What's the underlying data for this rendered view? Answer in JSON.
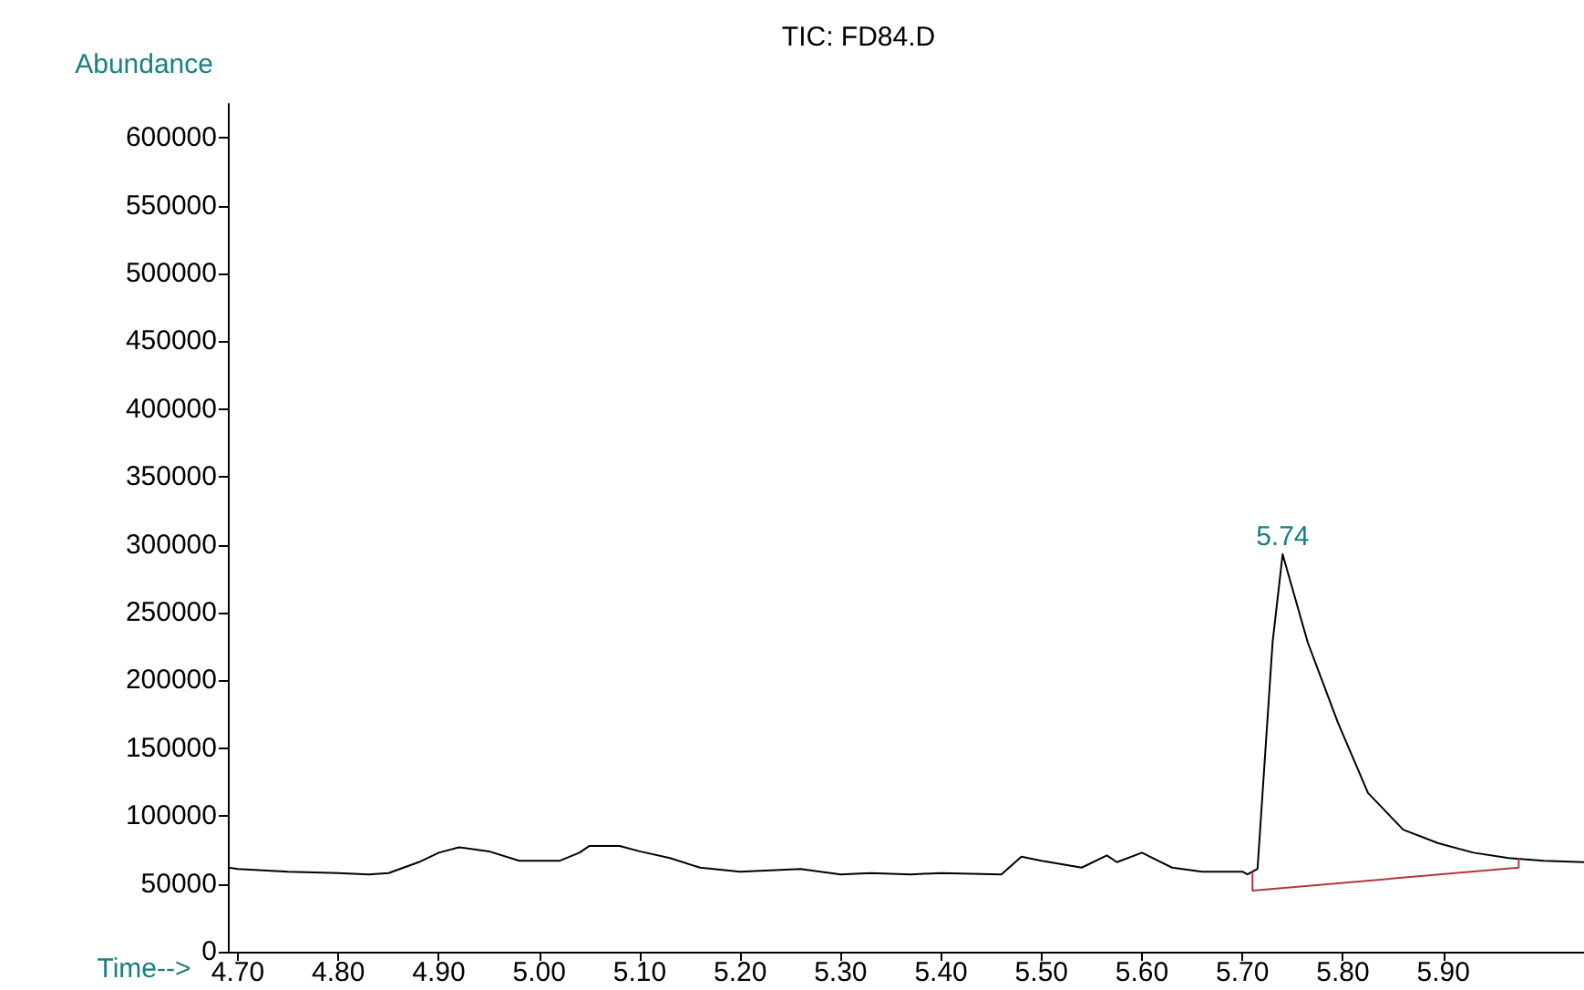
{
  "chart_data": {
    "type": "line",
    "title": "TIC: FD84.D",
    "xlabel": "Time-->",
    "ylabel": "Abundance",
    "xlim": [
      4.69,
      6.04
    ],
    "ylim": [
      0,
      625000
    ],
    "xticks": [
      {
        "value": 4.7,
        "label": "4.70"
      },
      {
        "value": 4.8,
        "label": "4.80"
      },
      {
        "value": 4.9,
        "label": "4.90"
      },
      {
        "value": 5.0,
        "label": "5.00"
      },
      {
        "value": 5.1,
        "label": "5.10"
      },
      {
        "value": 5.2,
        "label": "5.20"
      },
      {
        "value": 5.3,
        "label": "5.30"
      },
      {
        "value": 5.4,
        "label": "5.40"
      },
      {
        "value": 5.5,
        "label": "5.50"
      },
      {
        "value": 5.6,
        "label": "5.60"
      },
      {
        "value": 5.7,
        "label": "5.70"
      },
      {
        "value": 5.8,
        "label": "5.80"
      },
      {
        "value": 5.9,
        "label": "5.90"
      }
    ],
    "yticks": [
      0,
      50000,
      100000,
      150000,
      200000,
      250000,
      300000,
      350000,
      400000,
      450000,
      500000,
      550000,
      600000
    ],
    "grid": false,
    "marker": "none",
    "line_style": "solid",
    "annotations": [
      {
        "text": "5.74",
        "x": 5.74,
        "y": 293000
      }
    ],
    "series": [
      {
        "color": "#000000",
        "x": [
          4.69,
          4.7,
          4.75,
          4.8,
          4.83,
          4.85,
          4.88,
          4.9,
          4.92,
          4.95,
          4.98,
          5.02,
          5.04,
          5.05,
          5.08,
          5.1,
          5.13,
          5.16,
          5.2,
          5.26,
          5.3,
          5.33,
          5.37,
          5.4,
          5.46,
          5.48,
          5.5,
          5.54,
          5.565,
          5.575,
          5.6,
          5.63,
          5.66,
          5.7,
          5.705,
          5.715,
          5.73,
          5.74,
          5.765,
          5.795,
          5.825,
          5.86,
          5.895,
          5.93,
          5.965,
          6.0,
          6.04
        ],
        "values": [
          62000,
          61000,
          59000,
          58000,
          57000,
          58000,
          66000,
          73000,
          77000,
          74000,
          67000,
          67000,
          73000,
          78000,
          78000,
          74000,
          69000,
          62000,
          59000,
          61000,
          57000,
          58000,
          57000,
          58000,
          57000,
          70000,
          67000,
          62000,
          71000,
          66000,
          73000,
          62000,
          59000,
          59000,
          57000,
          61000,
          228000,
          293000,
          228000,
          169000,
          117000,
          90000,
          80000,
          73000,
          69000,
          67000,
          66000
        ]
      },
      {
        "color": "#b03838",
        "x": [
          5.71,
          5.71,
          5.975,
          5.975
        ],
        "values": [
          59000,
          45000,
          62000,
          69000
        ]
      }
    ]
  }
}
